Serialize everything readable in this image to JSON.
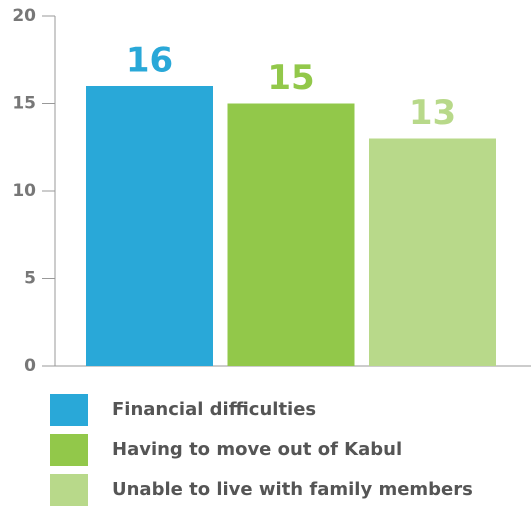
{
  "chart_data": {
    "type": "bar",
    "categories": [
      "Financial difficulties",
      "Having to move out of Kabul",
      "Unable to live with family members"
    ],
    "values": [
      16,
      15,
      13
    ],
    "colors": [
      "#29a8d8",
      "#92c84a",
      "#b8d98a"
    ],
    "ylim": [
      0,
      20
    ],
    "yticks": [
      0,
      5,
      10,
      15,
      20
    ]
  }
}
